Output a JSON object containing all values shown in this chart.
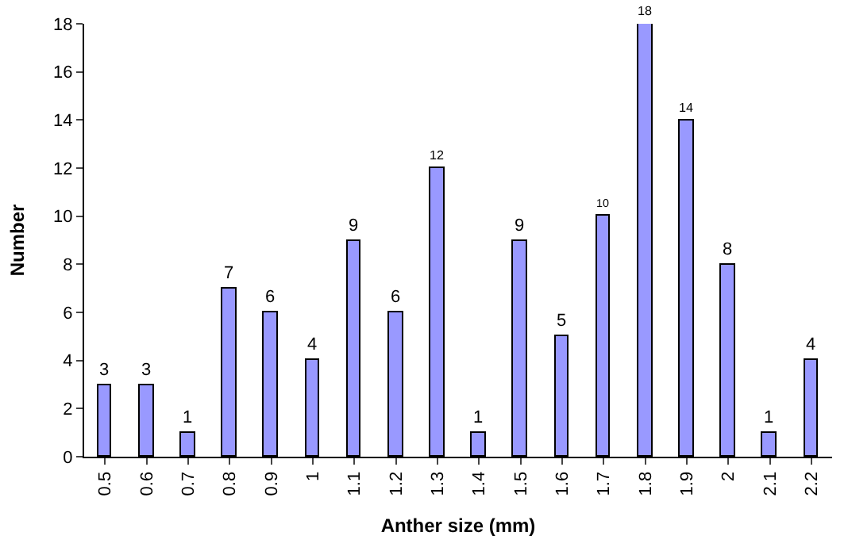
{
  "chart_data": {
    "type": "bar",
    "xlabel": "Anther size (mm)",
    "ylabel": "Number",
    "categories": [
      "0.5",
      "0.6",
      "0.7",
      "0.8",
      "0.9",
      "1",
      "1.1",
      "1.2",
      "1.3",
      "1.4",
      "1.5",
      "1.6",
      "1.7",
      "1.8",
      "1.9",
      "2",
      "2.1",
      "2.2"
    ],
    "values": [
      3,
      3,
      1,
      7,
      6,
      4,
      9,
      6,
      12,
      1,
      9,
      5,
      10,
      18,
      14,
      8,
      1,
      4
    ],
    "color": "#9999ff",
    "ylim": [
      0,
      18
    ],
    "yticks": [
      0,
      2,
      4,
      6,
      8,
      10,
      12,
      14,
      16,
      18
    ],
    "data_labels": true,
    "grid": false,
    "legend": false
  }
}
